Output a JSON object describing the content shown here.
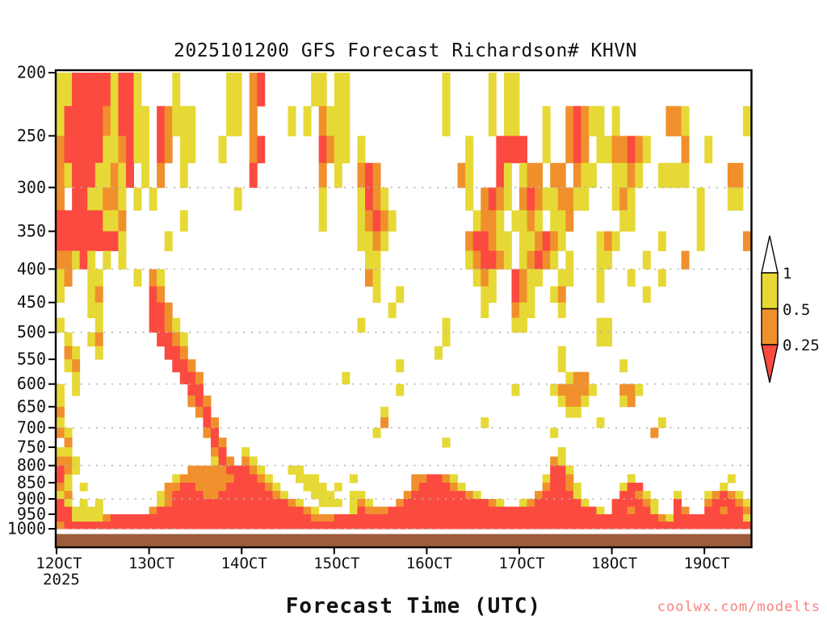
{
  "title": "2025101200 GFS Forecast Richardson# KHVN",
  "x_axis": {
    "label": "Forecast Time (UTC)",
    "tick_labels": [
      "12OCT",
      "13OCT",
      "14OCT",
      "15OCT",
      "16OCT",
      "17OCT",
      "18OCT",
      "19OCT"
    ],
    "year_label": "2025"
  },
  "y_axis": {
    "tick_labels": [
      "200",
      "250",
      "300",
      "350",
      "400",
      "450",
      "500",
      "550",
      "600",
      "650",
      "700",
      "750",
      "800",
      "850",
      "900",
      "950",
      "1000"
    ]
  },
  "colorbar": {
    "labels": [
      "1",
      "0.5",
      "0.25"
    ],
    "bins": [
      {
        "range": "> 1",
        "color": "#ffffff"
      },
      {
        "range": "0.5 - 1",
        "color": "#e6d936"
      },
      {
        "range": "0.25 - 0.5",
        "color": "#f0902c"
      },
      {
        "range": "< 0.25",
        "color": "#fb4a3f"
      }
    ]
  },
  "watermark": "coolwx.com/modelts",
  "colors": {
    "yellow": "#e6d936",
    "orange": "#f0902c",
    "red": "#fb4a3f",
    "terrain_brown": "#9d5c3b",
    "gridline": "#b5b5b5",
    "axis": "#000000",
    "watermark": "#f8827b"
  },
  "chart_data": {
    "type": "heatmap",
    "title": "2025101200 GFS Forecast Richardson# KHVN",
    "xlabel": "Forecast Time (UTC)",
    "ylabel_units": "hPa",
    "y_scale": "log-pressure",
    "pressure_top_hpa": 200,
    "pressure_bottom_hpa": 1000,
    "pressure_row_step_hpa": 25,
    "x_start": "2025-10-12 00 UTC",
    "x_step_hours": 2,
    "columns": 90,
    "columns_per_day": 12,
    "gridlines_hpa": [
      300,
      400,
      500,
      600,
      700,
      800,
      900,
      1000
    ],
    "value_bins": {
      "y": "Richardson 0.5-1",
      "o": "Richardson 0.25-0.5",
      "r": "Richardson < 0.25",
      ".": "Richardson > 1 (clear)"
    },
    "rows": [
      [
        "yyrrrrryrry.",
        "...y......yy",
        ".or......yy.",
        "yy..........",
        "..y.....y.yy",
        "............",
        "............",
        "......"
      ],
      [
        "yrrrrroyrryy",
        ".royyy....yy",
        ".o....y.y.oy",
        "yy..........",
        "..y.....y.yy",
        "...y..oroyy.",
        "y......ooy..",
        ".....y"
      ],
      [
        "orrrrryyoryy",
        ".ro.yy...y..",
        ".or.......ro",
        "yy.y........",
        ".....y...rrr",
        "r..y..oro.yy",
        "ooroy....o..",
        "y....."
      ],
      [
        "oyrrryyoyr.y",
        ".o..y.......",
        ".r........o.",
        "y..oro......",
        "....oy...ry.",
        "yoo.oo.oyy..",
        "yyoy..yyyy..",
        "...oo."
      ],
      [
        "o.rryyooy.y.",
        "y..........y",
        "..........y.",
        "...yroy.....",
        ".....y.oroy.",
        "oroyyooyy...",
        "yoy........y",
        "...yy."
      ],
      [
        "rrrrrryyo...",
        "....y.......",
        "..........y.",
        "...yoroy....",
        "......yooy.y",
        "yoy.yyo.....",
        ".yy........y",
        "......"
      ],
      [
        "rrrrrrrry...",
        "..y.........",
        "............",
        "...yyoy.....",
        ".....orroyy.",
        "yyoroy....yo",
        "y.....y....y",
        ".....o"
      ],
      [
        "ooyry.y.y...",
        "............",
        "............",
        "....yy......",
        ".....yorroy.",
        "yoroy.y...yy",
        "....y....o..",
        "......"
      ],
      [
        "yo..yy....y.",
        "oy..........",
        "............",
        "....oy......",
        "......yoy..r",
        "oyy..yy...y.",
        "..y...y.....",
        "......"
      ],
      [
        "y...yo......",
        "ro..........",
        "............",
        ".....y..y...",
        ".......yy..r",
        "oy..yo....y.",
        "....y.......",
        "......"
      ],
      [
        "....yy......",
        "rro.........",
        "............",
        ".......y....",
        ".......y...o",
        "yy...y......",
        "............",
        "......"
      ],
      [
        "y....y......",
        "rroy........",
        "............",
        "...y........",
        "..y........y",
        "y.........yy",
        "............",
        "......"
      ],
      [
        ".y..yo......",
        ".rroy.......",
        "............",
        "............",
        "..y.........",
        "..........yy",
        "............",
        "......"
      ],
      [
        ".oy..y......",
        "..rro.......",
        "............",
        "............",
        ".y..........",
        ".....y......",
        "............",
        "......"
      ],
      [
        ".yo.........",
        "...rro......",
        "............",
        "........y...",
        "............",
        ".....y......",
        ".y..........",
        "......"
      ],
      [
        "..y.........",
        "....rro.....",
        "............",
        ".y..........",
        "............",
        "......yoo...",
        "............",
        "......"
      ],
      [
        "y.y.........",
        ".....rr.....",
        "............",
        "........y...",
        "...........y",
        "....yooooy..",
        ".ooy........",
        "......"
      ],
      [
        "y...........",
        ".....oro....",
        "............",
        "............",
        "............",
        ".....yooy...",
        ".yo.........",
        "......"
      ],
      [
        "o...........",
        "......or....",
        "............",
        "......y.....",
        "............",
        "......yy....",
        "............",
        "......"
      ],
      [
        "y...........",
        ".......ro...",
        "............",
        "......o.....",
        ".......y....",
        "..........y.",
        "......y.....",
        "......"
      ],
      [
        "oy..........",
        ".......or...",
        "............",
        ".....y......",
        "............",
        "....y.......",
        ".....o......",
        "......"
      ],
      [
        ".o..........",
        "........ro..",
        "............",
        "............",
        "..y.........",
        "............",
        "............",
        "......"
      ],
      [
        "yy..........",
        "........or..",
        "y...........",
        "............",
        "............",
        ".....y......",
        "............",
        "......"
      ],
      [
        "ooy.........",
        "........yro.",
        "oy..........",
        "............",
        "............",
        "....oy......",
        "............",
        "......"
      ],
      [
        "roy.........",
        ".....ooooorr",
        "roy...yy....",
        "............",
        "............",
        "....rry.....",
        "............",
        "......"
      ],
      [
        "ry..........",
        "...yooooooor",
        "rroy...yyy..",
        "..y.......oo",
        "rroy........",
        "...yrro.....",
        "..y.........",
        "...y.."
      ],
      [
        "oy.y........",
        "..oorroooorr",
        "rrroy...yyy.",
        "y.........or",
        "rrroy.......",
        "...orroy....",
        ".yrr........",
        "..y..."
      ],
      [
        "yo..........",
        ".yorrrroorrr",
        "rrrroy...yyy",
        "..yy.....orr",
        "rrrrroy.....",
        "..orrrry....",
        ".rroy...y...",
        "yoroy."
      ],
      [
        "ry.y.y......",
        ".yorrrrrrrrr",
        "rrrrrroy..yy",
        "y.yoy...orrr",
        "rrrrrrrroy..",
        "yorrrrrry...",
        "rrrroy..r...",
        "orrroy"
      ],
      [
        "rryyyy......",
        "orrrrrrrrrrr",
        "rrrrrrrroy..",
        "..yrooorrrrr",
        "rrrrrrrrrrrr",
        "rrrrrrrrrry.",
        "rrorry..ro..",
        "rrorro"
      ],
      [
        "rryyyyorrrrr",
        "rrrrrrrrrrrr",
        "rrrrrrrrrooo",
        "rrrrrrrrrrrr",
        "rrrrrrrrrrrr",
        "rrrrrrrrrrrr",
        "rrrrrroyrrrr",
        "rrrrry"
      ],
      [
        "orrrrrrrrrrr",
        "rrrrrrrrrrrr",
        "rrrrrrrrrrrr",
        "rrrrrrrrrrrr",
        "rrrrrrrrrrrr",
        "rrrrrrrrrrrr",
        "rrrrrrrrrrrr",
        "rrrrrr"
      ]
    ]
  }
}
